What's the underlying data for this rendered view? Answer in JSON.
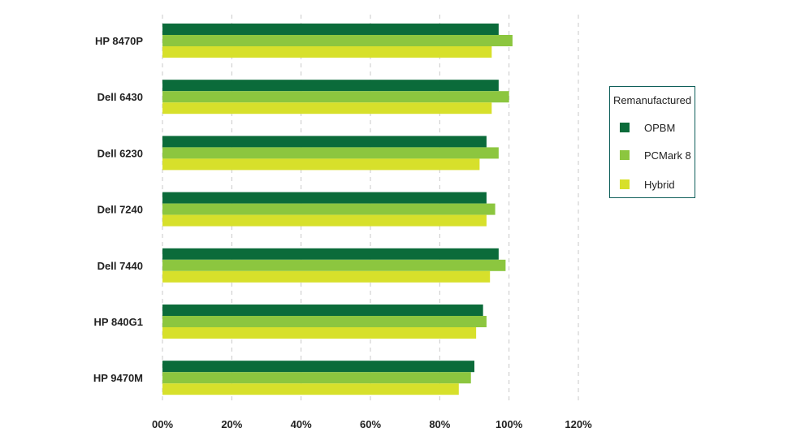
{
  "chart_data": {
    "type": "bar",
    "orientation": "horizontal",
    "categories": [
      "HP 8470P",
      "Dell 6430",
      "Dell 6230",
      "Dell 7240",
      "Dell 7440",
      "HP 840G1",
      "HP 9470M"
    ],
    "series": [
      {
        "name": "OPBM",
        "color": "#0b6b3a",
        "values": [
          97,
          97,
          93.5,
          93.5,
          97,
          92.5,
          90
        ]
      },
      {
        "name": "PCMark 8",
        "color": "#8cc63f",
        "values": [
          101,
          100,
          97,
          96,
          99,
          93.5,
          89
        ]
      },
      {
        "name": "Hybrid",
        "color": "#d7e02b",
        "values": [
          95,
          95,
          91.5,
          93.5,
          94.5,
          90.5,
          85.5
        ]
      }
    ],
    "x_ticks": [
      "00%",
      "20%",
      "40%",
      "60%",
      "80%",
      "100%",
      "120%"
    ],
    "xlim": [
      0,
      120
    ],
    "grid": "vertical dashed",
    "legend": {
      "title": "Remanufactured",
      "placement": "right"
    },
    "title": "",
    "xlabel": "",
    "ylabel": ""
  }
}
